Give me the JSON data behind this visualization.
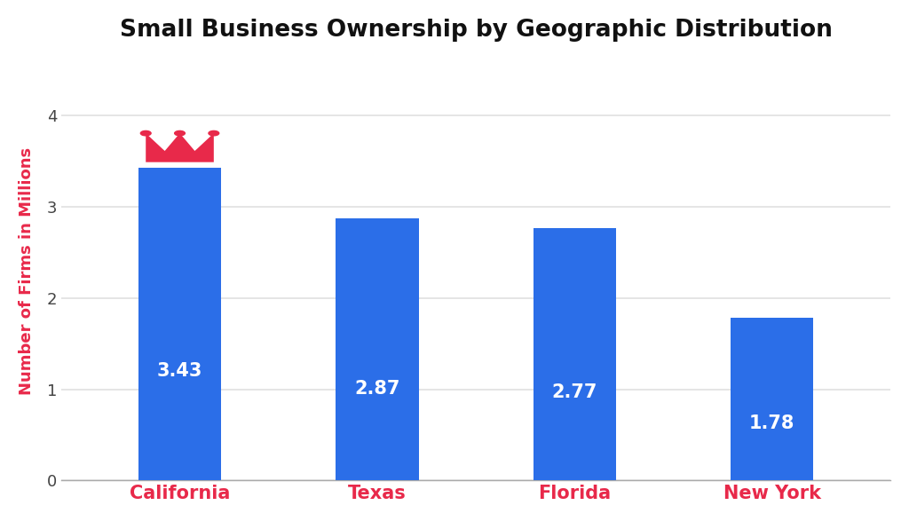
{
  "title": "Small Business Ownership by Geographic Distribution",
  "categories": [
    "California",
    "Texas",
    "Florida",
    "New York"
  ],
  "values": [
    3.43,
    2.87,
    2.77,
    1.78
  ],
  "bar_color": "#2B6EE8",
  "bar_width": 0.42,
  "ylabel": "Number of Firms in Millions",
  "ylabel_color": "#e8294a",
  "xtick_color": "#e8294a",
  "ytick_color": "#444444",
  "title_fontsize": 19,
  "label_fontsize": 13,
  "value_fontsize": 15,
  "xtick_fontsize": 15,
  "ytick_fontsize": 13,
  "ylim": [
    0,
    4.6
  ],
  "yticks": [
    0,
    1,
    2,
    3,
    4
  ],
  "background_color": "#ffffff",
  "grid_color": "#e0e0e0",
  "crown_color": "#e8294a",
  "value_text_color": "#ffffff"
}
